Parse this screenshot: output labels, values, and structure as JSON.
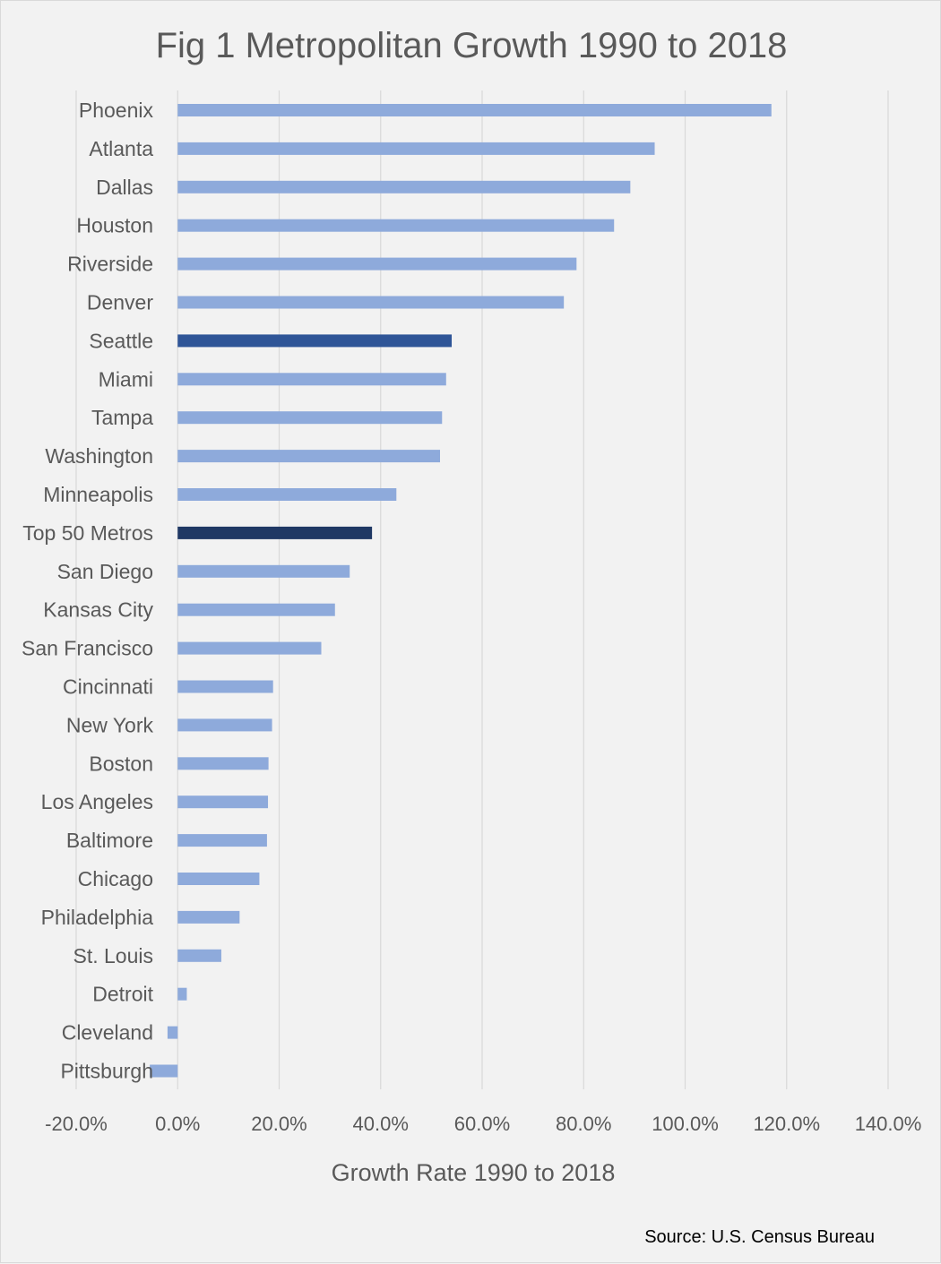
{
  "chart_data": {
    "type": "bar",
    "orientation": "horizontal",
    "title": "Fig 1 Metropolitan Growth 1990 to 2018",
    "xlabel": "Growth Rate 1990 to 2018",
    "ylabel": "",
    "source": "Source: U.S. Census Bureau",
    "xlim": [
      -20,
      140
    ],
    "x_ticks": [
      -20,
      0,
      20,
      40,
      60,
      80,
      100,
      120,
      140
    ],
    "x_tick_labels": [
      "-20.0%",
      "0.0%",
      "20.0%",
      "40.0%",
      "60.0%",
      "80.0%",
      "100.0%",
      "120.0%",
      "140.0%"
    ],
    "grid": "vertical major gridlines",
    "legend": "none",
    "categories": [
      "Phoenix",
      "Atlanta",
      "Dallas",
      "Houston",
      "Riverside",
      "Denver",
      "Seattle",
      "Miami",
      "Tampa",
      "Washington",
      "Minneapolis",
      "Top 50 Metros",
      "San Diego",
      "Kansas City",
      "San Francisco",
      "Cincinnati",
      "New York",
      "Boston",
      "Los Angeles",
      "Baltimore",
      "Chicago",
      "Philadelphia",
      "St. Louis",
      "Detroit",
      "Cleveland",
      "Pittsburgh"
    ],
    "values": [
      117.0,
      94.0,
      89.2,
      86.0,
      78.6,
      76.1,
      54.0,
      52.9,
      52.1,
      51.7,
      43.1,
      38.3,
      33.9,
      31.0,
      28.3,
      18.8,
      18.6,
      17.9,
      17.8,
      17.6,
      16.1,
      12.2,
      8.6,
      1.8,
      -2.0,
      -5.5
    ],
    "colors": {
      "default": "#8eaadb",
      "Seattle": "#2f5597",
      "Top 50 Metros": "#1f3864"
    }
  }
}
